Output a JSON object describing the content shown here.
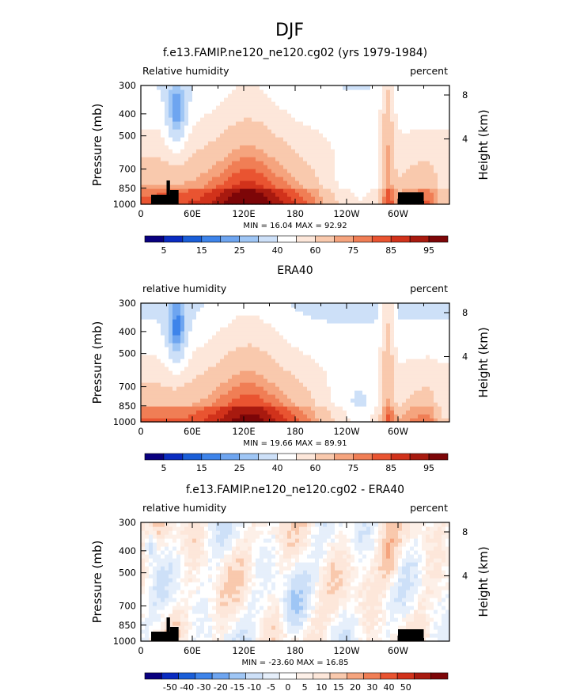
{
  "figure": {
    "title": "DJF"
  },
  "colors": {
    "rh_levels": [
      "#09007f",
      "#0a2cc1",
      "#1a5ed8",
      "#3e84ea",
      "#6ea5f0",
      "#9fc6f5",
      "#cde0f8",
      "#ffffff",
      "#fde7da",
      "#f9c9ad",
      "#f5a47e",
      "#f07e55",
      "#e95431",
      "#d1321b",
      "#a81a0f",
      "#7d0608"
    ],
    "diff_levels": [
      "#09007f",
      "#0a2cc1",
      "#1a5ed8",
      "#3e84ea",
      "#6ea5f0",
      "#9fc6f5",
      "#cde0f8",
      "#e6effb",
      "#ffffff",
      "#fdf0e8",
      "#fde7da",
      "#f9c9ad",
      "#f5a47e",
      "#f07e55",
      "#e95431",
      "#d1321b",
      "#a81a0f",
      "#7d0608"
    ],
    "terrain": "#000000"
  },
  "chart_data": [
    {
      "type": "heatmap",
      "title": "f.e13.FAMIP.ne120_ne120.cg02 (yrs 1979-1984)",
      "left_label": "Relative humidity",
      "right_label": "percent",
      "ylabel": "Pressure (mb)",
      "ylabel_right": "Height (km)",
      "xticks": [
        "0",
        "60E",
        "120E",
        "180",
        "120W",
        "60W"
      ],
      "yticks": [
        "300",
        "400",
        "500",
        "700",
        "850",
        "1000"
      ],
      "yticks_right": [
        "8",
        "4"
      ],
      "stats": "MIN =   16.04   MAX =   92.92",
      "colorbar_labels": [
        "5",
        "15",
        "25",
        "40",
        "60",
        "75",
        "85",
        "95"
      ],
      "xlim": [
        0,
        360
      ],
      "ylim": [
        1000,
        300
      ],
      "terrain": true
    },
    {
      "type": "heatmap",
      "title": "ERA40",
      "left_label": "relative humidity",
      "right_label": "percent",
      "ylabel": "Pressure (mb)",
      "ylabel_right": "Height (km)",
      "xticks": [
        "0",
        "60E",
        "120E",
        "180",
        "120W",
        "60W"
      ],
      "yticks": [
        "300",
        "400",
        "500",
        "700",
        "850",
        "1000"
      ],
      "yticks_right": [
        "8",
        "4"
      ],
      "stats": "MIN =   19.66   MAX =   89.91",
      "colorbar_labels": [
        "5",
        "15",
        "25",
        "40",
        "60",
        "75",
        "85",
        "95"
      ],
      "xlim": [
        0,
        360
      ],
      "ylim": [
        1000,
        300
      ],
      "terrain": false
    },
    {
      "type": "heatmap",
      "title": "f.e13.FAMIP.ne120_ne120.cg02 - ERA40",
      "left_label": "relative humidity",
      "right_label": "percent",
      "ylabel": "Pressure (mb)",
      "ylabel_right": "Height (km)",
      "xticks": [
        "0",
        "60E",
        "120E",
        "180",
        "120W",
        "60W"
      ],
      "yticks": [
        "300",
        "400",
        "500",
        "700",
        "850",
        "1000"
      ],
      "yticks_right": [
        "8",
        "4"
      ],
      "stats": "MIN = -23.60   MAX =   16.85",
      "colorbar_labels": [
        "-50",
        "-40",
        "-30",
        "-20",
        "-15",
        "-10",
        "-5",
        "0",
        "5",
        "10",
        "15",
        "20",
        "30",
        "40",
        "50"
      ],
      "xlim": [
        0,
        360
      ],
      "ylim": [
        1000,
        300
      ],
      "terrain": true
    }
  ]
}
